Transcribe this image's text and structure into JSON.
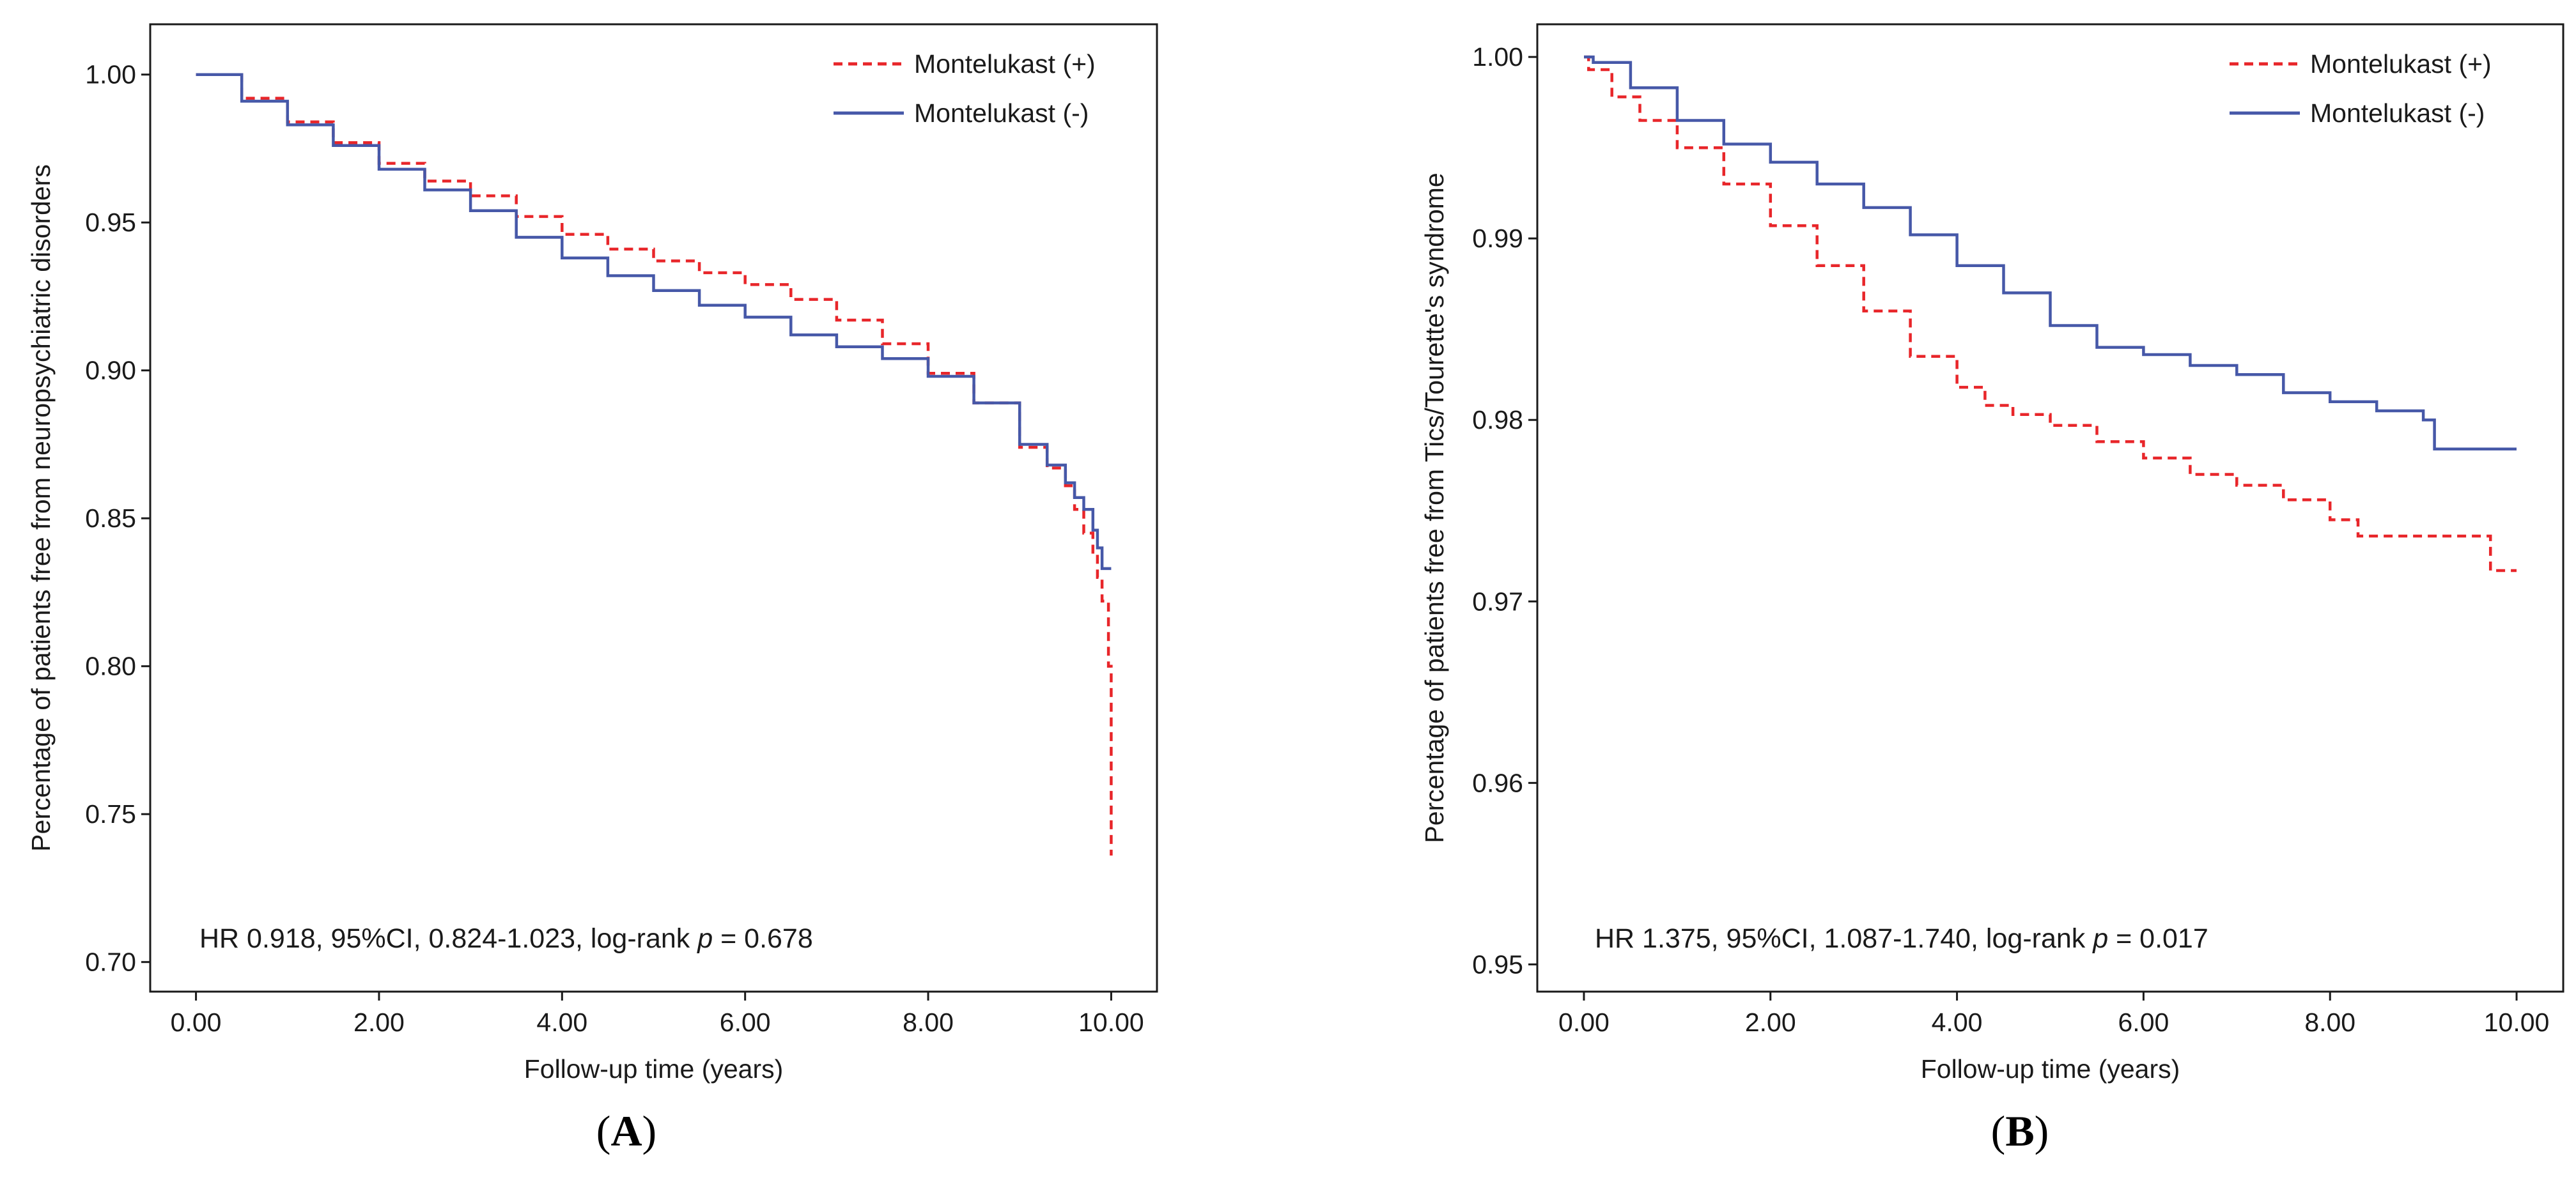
{
  "colors": {
    "montelukast_pos": "#e8262a",
    "montelukast_neg": "#4658a8",
    "axis": "#1a1a1a"
  },
  "chart_data": [
    {
      "type": "line",
      "panel_label": "A",
      "panel_paren_open": "(",
      "panel_paren_close": ")",
      "xlabel": "Follow-up time (years)",
      "ylabel": "Percentage of patients free from neuropsychiatric disorders",
      "xlim": [
        -0.5,
        10.5
      ],
      "ylim": [
        0.69,
        1.017
      ],
      "x_ticks": [
        0,
        2,
        4,
        6,
        8,
        10
      ],
      "x_tick_labels": [
        "0.00",
        "2.00",
        "4.00",
        "6.00",
        "8.00",
        "10.00"
      ],
      "y_ticks": [
        0.7,
        0.75,
        0.8,
        0.85,
        0.9,
        0.95,
        1.0
      ],
      "y_tick_labels": [
        "0.70",
        "0.75",
        "0.80",
        "0.85",
        "0.90",
        "0.95",
        "1.00"
      ],
      "legend": {
        "position": "top-right",
        "entries": [
          "Montelukast (+)",
          "Montelukast (-)"
        ]
      },
      "annotation": {
        "prefix": "HR 0.918, 95%CI, 0.824-1.023, log-rank ",
        "p_symbol": "p",
        "suffix": " = 0.678"
      },
      "series": [
        {
          "name": "Montelukast (+)",
          "style": "dashed",
          "color_key": "montelukast_pos",
          "x": [
            0,
            0.5,
            1,
            1.5,
            2,
            2.5,
            3,
            3.5,
            4,
            4.5,
            5,
            5.5,
            6,
            6.5,
            7,
            7.5,
            8,
            8.5,
            9,
            9.3,
            9.5,
            9.6,
            9.7,
            9.8,
            9.85,
            9.9,
            9.95,
            9.97,
            10
          ],
          "y": [
            1.0,
            0.992,
            0.984,
            0.977,
            0.97,
            0.964,
            0.959,
            0.952,
            0.946,
            0.941,
            0.937,
            0.933,
            0.929,
            0.924,
            0.917,
            0.909,
            0.899,
            0.889,
            0.874,
            0.867,
            0.861,
            0.853,
            0.845,
            0.838,
            0.83,
            0.822,
            0.822,
            0.8,
            0.736
          ]
        },
        {
          "name": "Montelukast (-)",
          "style": "solid",
          "color_key": "montelukast_neg",
          "x": [
            0,
            0.5,
            1,
            1.5,
            2,
            2.5,
            3,
            3.5,
            4,
            4.5,
            5,
            5.5,
            6,
            6.5,
            7,
            7.5,
            8,
            8.5,
            9,
            9.3,
            9.5,
            9.6,
            9.7,
            9.8,
            9.85,
            9.9,
            10
          ],
          "y": [
            1.0,
            0.991,
            0.983,
            0.976,
            0.968,
            0.961,
            0.954,
            0.945,
            0.938,
            0.932,
            0.927,
            0.922,
            0.918,
            0.912,
            0.908,
            0.904,
            0.898,
            0.889,
            0.875,
            0.868,
            0.862,
            0.857,
            0.853,
            0.846,
            0.84,
            0.833,
            0.833
          ]
        }
      ]
    },
    {
      "type": "line",
      "panel_label": "B",
      "panel_paren_open": "(",
      "panel_paren_close": ")",
      "xlabel": "Follow-up time (years)",
      "ylabel": "Percentage of patients free from Tics/Tourette's syndrome",
      "xlim": [
        -0.5,
        10.5
      ],
      "ylim": [
        0.9485,
        1.0018
      ],
      "x_ticks": [
        0,
        2,
        4,
        6,
        8,
        10
      ],
      "x_tick_labels": [
        "0.00",
        "2.00",
        "4.00",
        "6.00",
        "8.00",
        "10.00"
      ],
      "y_ticks": [
        0.95,
        0.96,
        0.97,
        0.98,
        0.99,
        1.0
      ],
      "y_tick_labels": [
        "0.95",
        "0.96",
        "0.97",
        "0.98",
        "0.99",
        "1.00"
      ],
      "legend": {
        "position": "top-right",
        "entries": [
          "Montelukast (+)",
          "Montelukast (-)"
        ]
      },
      "annotation": {
        "prefix": "HR 1.375, 95%CI, 1.087-1.740, log-rank ",
        "p_symbol": "p",
        "suffix": " = 0.017"
      },
      "series": [
        {
          "name": "Montelukast (+)",
          "style": "dashed",
          "color_key": "montelukast_pos",
          "x": [
            0,
            0.05,
            0.3,
            0.6,
            1,
            1.5,
            2,
            2.5,
            3,
            3.5,
            4,
            4.3,
            4.6,
            5,
            5.5,
            6,
            6.5,
            7,
            7.5,
            8,
            8.3,
            9,
            9.7,
            9.72,
            10
          ],
          "y": [
            1.0,
            0.9993,
            0.9978,
            0.9965,
            0.995,
            0.993,
            0.9907,
            0.9885,
            0.986,
            0.9835,
            0.9818,
            0.9808,
            0.9803,
            0.9797,
            0.9788,
            0.9779,
            0.977,
            0.9764,
            0.9756,
            0.9745,
            0.9736,
            0.9736,
            0.9736,
            0.9717,
            0.9717
          ]
        },
        {
          "name": "Montelukast (-)",
          "style": "solid",
          "color_key": "montelukast_neg",
          "x": [
            0,
            0.1,
            0.5,
            1,
            1.5,
            2,
            2.5,
            3,
            3.5,
            4,
            4.5,
            5,
            5.5,
            6,
            6.5,
            7,
            7.5,
            8,
            8.5,
            9,
            9.1,
            9.12,
            10
          ],
          "y": [
            1.0,
            0.9997,
            0.9983,
            0.9965,
            0.9952,
            0.9942,
            0.993,
            0.9917,
            0.9902,
            0.9885,
            0.987,
            0.9852,
            0.984,
            0.9836,
            0.983,
            0.9825,
            0.9815,
            0.981,
            0.9805,
            0.98,
            0.98,
            0.9784,
            0.9784
          ]
        }
      ]
    }
  ]
}
